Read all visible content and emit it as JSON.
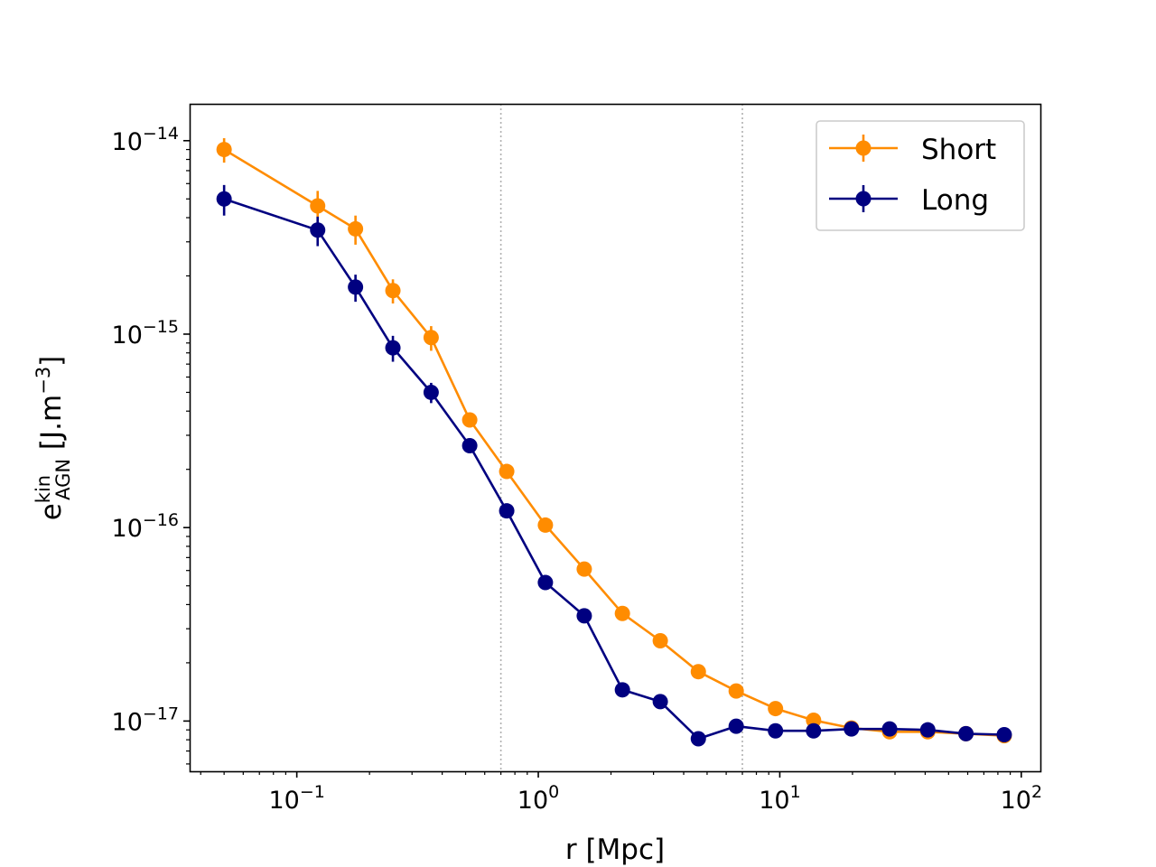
{
  "chart_data": {
    "type": "line",
    "xscale": "log",
    "yscale": "log",
    "xlim": [
      0.036,
      120
    ],
    "ylim": [
      5.5e-18,
      1.55e-14
    ],
    "xlabel": "r [Mpc]",
    "ylabel": {
      "base": "e",
      "sup": "kin",
      "sub": "AGN",
      "unit_open": " [J.m",
      "unit_sup": "−3",
      "unit_close": "]"
    },
    "x_ticks": [
      {
        "value": 0.1,
        "base": "10",
        "exp": "−1"
      },
      {
        "value": 1,
        "base": "10",
        "exp": "0"
      },
      {
        "value": 10,
        "base": "10",
        "exp": "1"
      },
      {
        "value": 100,
        "base": "10",
        "exp": "2"
      }
    ],
    "y_ticks": [
      {
        "value": 1e-17,
        "base": "10",
        "exp": "−17"
      },
      {
        "value": 1e-16,
        "base": "10",
        "exp": "−16"
      },
      {
        "value": 1e-15,
        "base": "10",
        "exp": "−15"
      },
      {
        "value": 1e-14,
        "base": "10",
        "exp": "−14"
      }
    ],
    "vlines": [
      0.7,
      7.0
    ],
    "legend_position": "top-right",
    "series": [
      {
        "name": "Short",
        "color": "#ff8c00",
        "x": [
          0.05,
          0.122,
          0.175,
          0.25,
          0.36,
          0.52,
          0.74,
          1.07,
          1.55,
          2.23,
          3.2,
          4.6,
          6.6,
          9.6,
          13.8,
          19.8,
          28.5,
          41,
          59,
          85
        ],
        "y": [
          9e-15,
          4.6e-15,
          3.5e-15,
          1.68e-15,
          9.6e-16,
          3.6e-16,
          1.95e-16,
          1.03e-16,
          6.1e-17,
          3.6e-17,
          2.6e-17,
          1.8e-17,
          1.43e-17,
          1.16e-17,
          1.01e-17,
          9.2e-18,
          8.8e-18,
          8.8e-18,
          8.6e-18,
          8.4e-18
        ],
        "yerr": [
          1.3e-15,
          9e-16,
          6e-16,
          2.4e-16,
          1.4e-16,
          2.5e-17,
          1e-17,
          4e-18,
          2e-18,
          1e-18,
          5e-19,
          3e-19,
          2e-19,
          1e-19,
          1e-19,
          1e-19,
          1e-19,
          1e-19,
          1e-19,
          1e-19
        ]
      },
      {
        "name": "Long",
        "color": "#000080",
        "x": [
          0.05,
          0.122,
          0.175,
          0.25,
          0.36,
          0.52,
          0.74,
          1.07,
          1.55,
          2.23,
          3.2,
          4.6,
          6.6,
          9.6,
          13.8,
          19.8,
          28.5,
          41,
          59,
          85
        ],
        "y": [
          5e-15,
          3.45e-15,
          1.75e-15,
          8.5e-16,
          5e-16,
          2.65e-16,
          1.22e-16,
          5.2e-17,
          3.5e-17,
          1.45e-17,
          1.26e-17,
          8.1e-18,
          9.4e-18,
          8.9e-18,
          8.9e-18,
          9.1e-18,
          9.1e-18,
          9e-18,
          8.6e-18,
          8.5e-18
        ],
        "yerr": [
          9e-16,
          6e-16,
          2.8e-16,
          1.3e-16,
          6e-17,
          2e-17,
          6e-18,
          2e-18,
          1.5e-18,
          4e-19,
          3e-19,
          2e-19,
          2e-19,
          1e-19,
          1e-19,
          1e-19,
          1e-19,
          1e-19,
          1e-19,
          1e-19
        ]
      }
    ]
  }
}
